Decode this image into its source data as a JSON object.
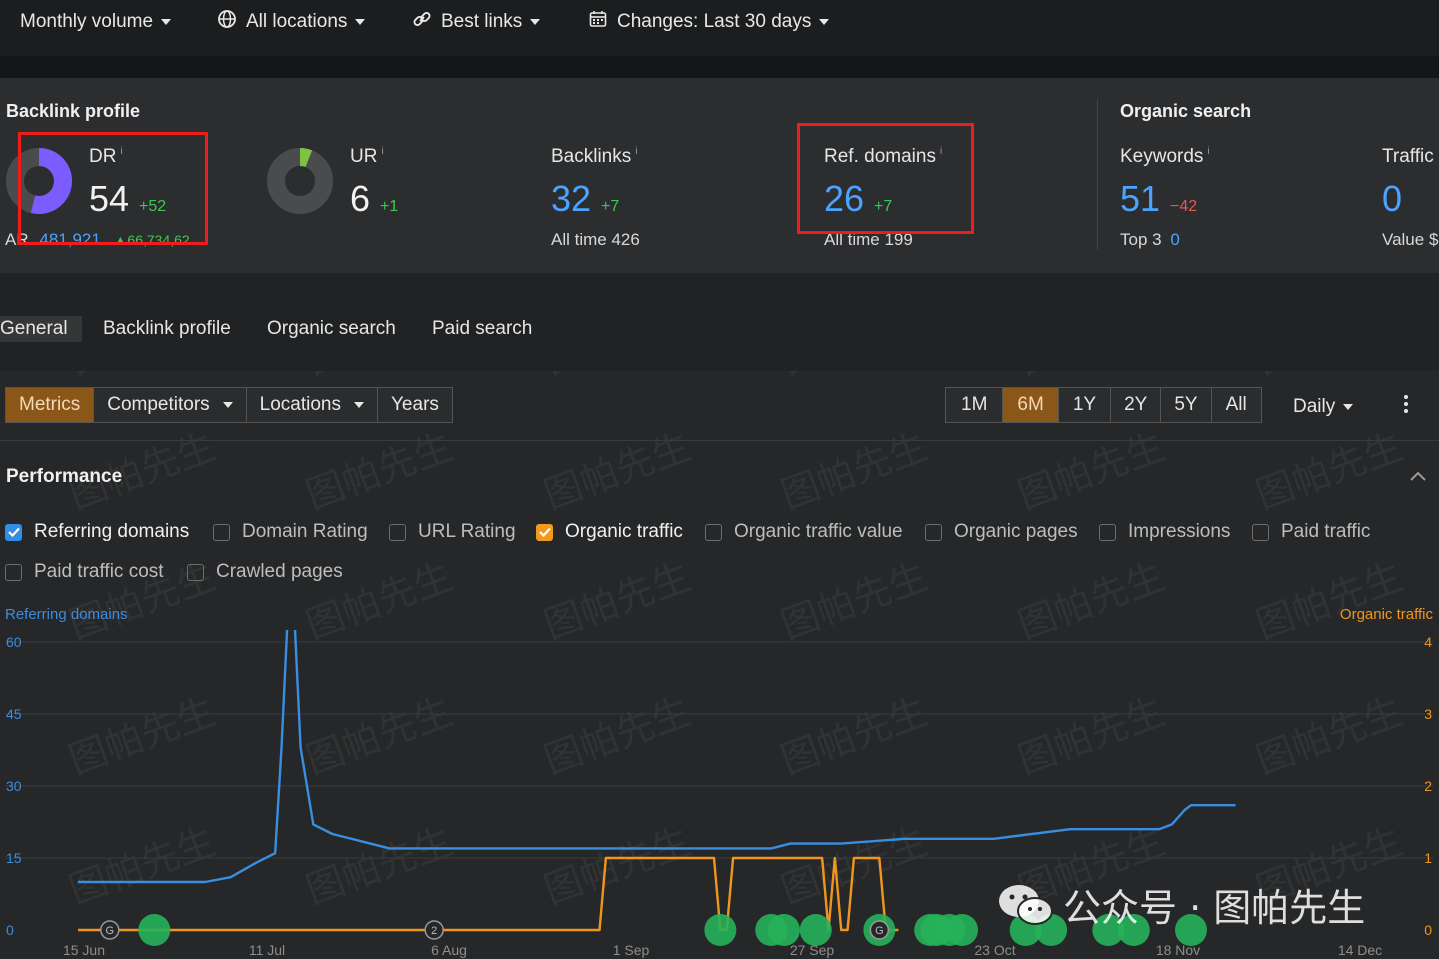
{
  "filters": {
    "volume": "Monthly volume",
    "locations": "All locations",
    "links": "Best links",
    "changes": "Changes: Last 30 days"
  },
  "backlink_profile": {
    "title": "Backlink profile",
    "dr": {
      "label": "DR",
      "info": "i",
      "value": "54",
      "delta": "+52",
      "ar_label": "AR",
      "ar_value": "481,921",
      "ar_delta": "▲66,734,62"
    },
    "ur": {
      "label": "UR",
      "info": "i",
      "value": "6",
      "delta": "+1"
    },
    "backlinks": {
      "label": "Backlinks",
      "info": "i",
      "value": "32",
      "delta": "+7",
      "sub": "All time  426"
    },
    "ref_domains": {
      "label": "Ref. domains",
      "info": "i",
      "value": "26",
      "delta": "+7",
      "sub": "All time  199"
    }
  },
  "organic_search": {
    "title": "Organic search",
    "keywords": {
      "label": "Keywords",
      "info": "i",
      "value": "51",
      "delta": "−42",
      "sub_label": "Top 3",
      "sub_value": "0"
    },
    "traffic": {
      "label": "Traffic",
      "value": "0",
      "sub": "Value  $"
    }
  },
  "tabs": [
    "General",
    "Backlink profile",
    "Organic search",
    "Paid search"
  ],
  "toolbar": {
    "left": [
      "Metrics",
      "Competitors",
      "Locations",
      "Years"
    ],
    "ranges": [
      "1M",
      "6M",
      "1Y",
      "2Y",
      "5Y",
      "All"
    ],
    "active_range": "6M",
    "interval": "Daily"
  },
  "performance": {
    "title": "Performance",
    "checks": [
      {
        "label": "Referring domains",
        "checked": true,
        "color": "#2f8fe6"
      },
      {
        "label": "Domain Rating",
        "checked": false
      },
      {
        "label": "URL Rating",
        "checked": false
      },
      {
        "label": "Organic traffic",
        "checked": true,
        "color": "#f29a1e"
      },
      {
        "label": "Organic traffic value",
        "checked": false
      },
      {
        "label": "Organic pages",
        "checked": false
      },
      {
        "label": "Impressions",
        "checked": false
      },
      {
        "label": "Paid traffic",
        "checked": false
      },
      {
        "label": "Paid traffic cost",
        "checked": false
      },
      {
        "label": "Crawled pages",
        "checked": false
      }
    ]
  },
  "chart_data": {
    "type": "line",
    "left_axis_title": "Referring domains",
    "right_axis_title": "Organic traffic",
    "y_left_ticks": [
      0,
      15,
      30,
      45,
      60
    ],
    "y_right_ticks": [
      0,
      1,
      2,
      3,
      4
    ],
    "ylim_left": [
      0,
      60
    ],
    "ylim_right": [
      0,
      4
    ],
    "x_ticks": [
      "15 Jun",
      "11 Jul",
      "6 Aug",
      "1 Sep",
      "27 Sep",
      "23 Oct",
      "18 Nov",
      "14 Dec"
    ],
    "grid": true,
    "series": [
      {
        "name": "Referring domains",
        "color": "#3a8ee0",
        "axis": "left",
        "x": [
          0,
          4,
          10,
          20,
          24,
          28,
          31,
          32,
          33,
          34,
          35,
          37,
          40,
          49,
          60,
          75,
          100,
          109,
          112,
          120,
          130,
          144,
          156,
          166,
          170,
          172,
          174,
          175,
          178,
          182
        ],
        "y": [
          10,
          10,
          10,
          10,
          11,
          14,
          16,
          38,
          66,
          66,
          38,
          22,
          20,
          17,
          17,
          17,
          17,
          17,
          18,
          18,
          19,
          19,
          21,
          21,
          21,
          22,
          25,
          26,
          26,
          26
        ]
      },
      {
        "name": "Organic traffic",
        "color": "#f0961c",
        "axis": "right",
        "x": [
          0,
          82,
          83,
          100,
          101,
          102,
          103,
          117,
          118,
          119,
          120,
          121,
          122,
          126,
          127,
          128,
          129
        ],
        "y": [
          0,
          0,
          1,
          1,
          0,
          0,
          1,
          1,
          0,
          1,
          0,
          0,
          1,
          1,
          0,
          0,
          0
        ]
      }
    ],
    "annotation_markers": [
      {
        "x": 5,
        "label": "G"
      },
      {
        "x": 56,
        "label": "2"
      },
      {
        "x": 126,
        "label": "G"
      }
    ],
    "event_markers_x": [
      12,
      101,
      109,
      111,
      116,
      126,
      134,
      135,
      137,
      139,
      149,
      153,
      162,
      166,
      175
    ]
  },
  "watermark": {
    "text": "图帕先生",
    "badge": "公众号 · 图帕先生"
  }
}
